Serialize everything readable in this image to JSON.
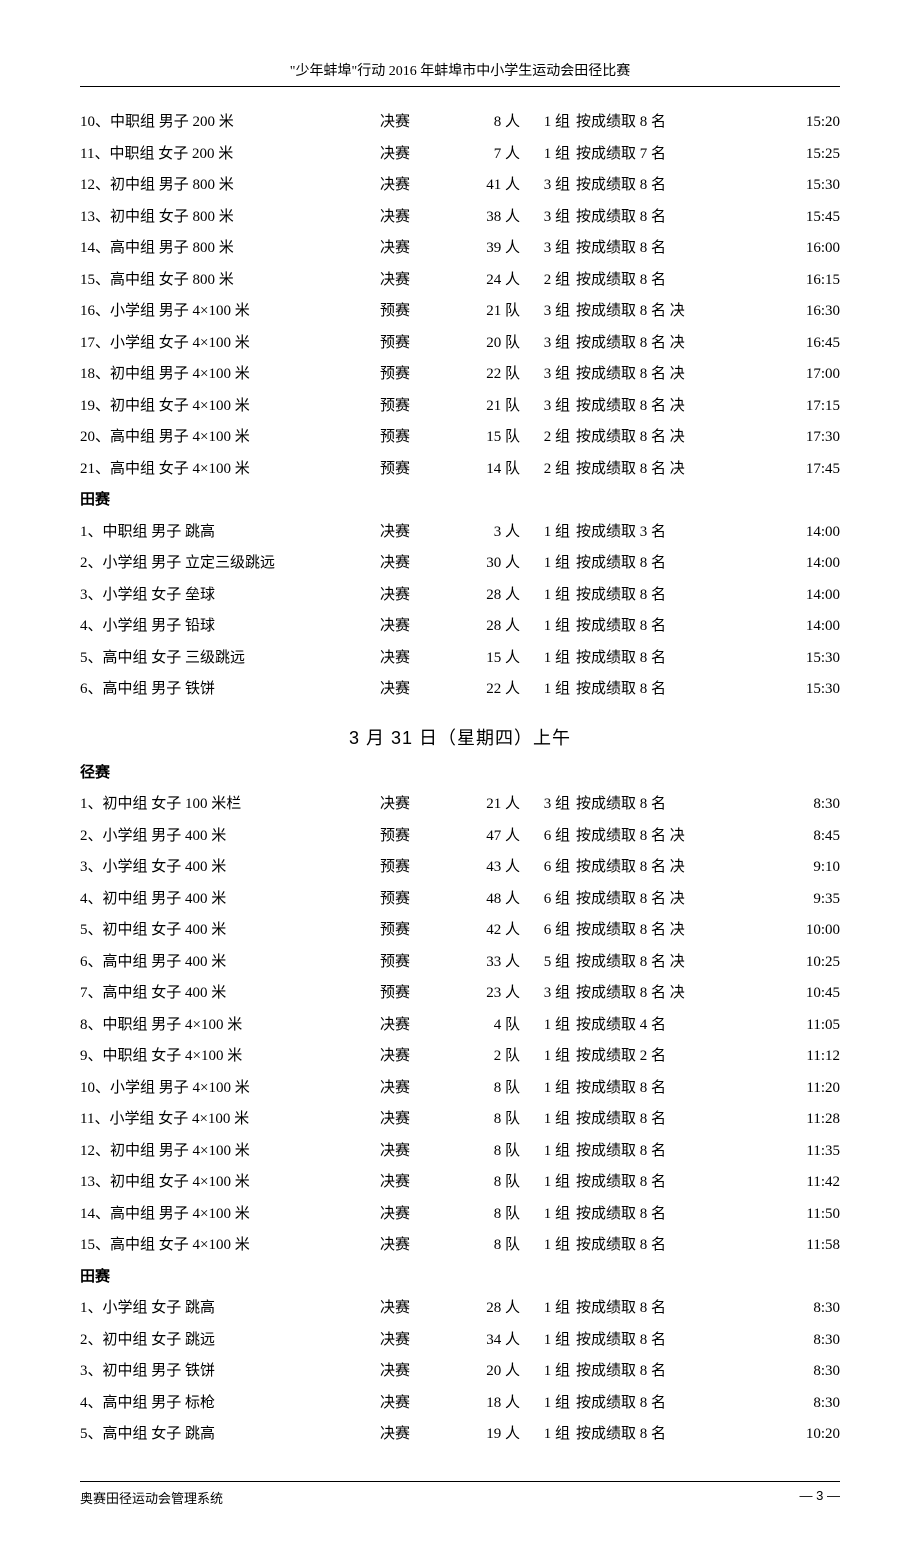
{
  "header": "\"少年蚌埠\"行动 2016 年蚌埠市中小学生运动会田径比赛",
  "sections": [
    {
      "type": "rows",
      "rows": [
        {
          "no": "10、",
          "event": "中职组 男子 200 米",
          "stage": "决赛",
          "count": "8 人",
          "groups": "1 组",
          "rule": "按成绩取 8 名",
          "time": "15:20"
        },
        {
          "no": "11、",
          "event": "中职组 女子 200 米",
          "stage": "决赛",
          "count": "7 人",
          "groups": "1 组",
          "rule": "按成绩取 7 名",
          "time": "15:25"
        },
        {
          "no": "12、",
          "event": "初中组 男子 800 米",
          "stage": "决赛",
          "count": "41 人",
          "groups": "3 组",
          "rule": "按成绩取 8 名",
          "time": "15:30"
        },
        {
          "no": "13、",
          "event": "初中组 女子 800 米",
          "stage": "决赛",
          "count": "38 人",
          "groups": "3 组",
          "rule": "按成绩取 8 名",
          "time": "15:45"
        },
        {
          "no": "14、",
          "event": "高中组 男子 800 米",
          "stage": "决赛",
          "count": "39 人",
          "groups": "3 组",
          "rule": "按成绩取 8 名",
          "time": "16:00"
        },
        {
          "no": "15、",
          "event": "高中组 女子 800 米",
          "stage": "决赛",
          "count": "24 人",
          "groups": "2 组",
          "rule": "按成绩取 8 名",
          "time": "16:15"
        },
        {
          "no": "16、",
          "event": "小学组 男子 4×100 米",
          "stage": "预赛",
          "count": "21 队",
          "groups": "3 组",
          "rule": "按成绩取 8 名 决",
          "time": "16:30"
        },
        {
          "no": "17、",
          "event": "小学组 女子 4×100 米",
          "stage": "预赛",
          "count": "20 队",
          "groups": "3 组",
          "rule": "按成绩取 8 名 决",
          "time": "16:45"
        },
        {
          "no": "18、",
          "event": "初中组 男子 4×100 米",
          "stage": "预赛",
          "count": "22 队",
          "groups": "3 组",
          "rule": "按成绩取 8 名 决",
          "time": "17:00"
        },
        {
          "no": "19、",
          "event": "初中组 女子 4×100 米",
          "stage": "预赛",
          "count": "21 队",
          "groups": "3 组",
          "rule": "按成绩取 8 名 决",
          "time": "17:15"
        },
        {
          "no": "20、",
          "event": "高中组 男子 4×100 米",
          "stage": "预赛",
          "count": "15 队",
          "groups": "2 组",
          "rule": "按成绩取 8 名 决",
          "time": "17:30"
        },
        {
          "no": "21、",
          "event": "高中组 女子 4×100 米",
          "stage": "预赛",
          "count": "14 队",
          "groups": "2 组",
          "rule": "按成绩取 8 名 决",
          "time": "17:45"
        }
      ]
    },
    {
      "type": "header",
      "text": "田赛"
    },
    {
      "type": "rows",
      "rows": [
        {
          "no": "1、",
          "event": "中职组 男子 跳高",
          "stage": "决赛",
          "count": "3 人",
          "groups": "1 组",
          "rule": "按成绩取 3 名",
          "time": "14:00"
        },
        {
          "no": "2、",
          "event": "小学组 男子 立定三级跳远",
          "stage": "决赛",
          "count": "30 人",
          "groups": "1 组",
          "rule": "按成绩取 8 名",
          "time": "14:00"
        },
        {
          "no": "3、",
          "event": "小学组 女子 垒球",
          "stage": "决赛",
          "count": "28 人",
          "groups": "1 组",
          "rule": "按成绩取 8 名",
          "time": "14:00"
        },
        {
          "no": "4、",
          "event": "小学组 男子 铅球",
          "stage": "决赛",
          "count": "28 人",
          "groups": "1 组",
          "rule": "按成绩取 8 名",
          "time": "14:00"
        },
        {
          "no": "5、",
          "event": "高中组 女子 三级跳远",
          "stage": "决赛",
          "count": "15 人",
          "groups": "1 组",
          "rule": "按成绩取 8 名",
          "time": "15:30"
        },
        {
          "no": "6、",
          "event": "高中组 男子 铁饼",
          "stage": "决赛",
          "count": "22 人",
          "groups": "1 组",
          "rule": "按成绩取 8 名",
          "time": "15:30"
        }
      ]
    },
    {
      "type": "date",
      "text": "3 月 31 日（星期四）上午"
    },
    {
      "type": "header",
      "text": "径赛"
    },
    {
      "type": "rows",
      "rows": [
        {
          "no": "1、",
          "event": "初中组 女子 100 米栏",
          "stage": "决赛",
          "count": "21 人",
          "groups": "3 组",
          "rule": "按成绩取 8 名",
          "time": "8:30"
        },
        {
          "no": "2、",
          "event": "小学组 男子 400 米",
          "stage": "预赛",
          "count": "47 人",
          "groups": "6 组",
          "rule": "按成绩取 8 名 决",
          "time": "8:45"
        },
        {
          "no": "3、",
          "event": "小学组 女子 400 米",
          "stage": "预赛",
          "count": "43 人",
          "groups": "6 组",
          "rule": "按成绩取 8 名 决",
          "time": "9:10"
        },
        {
          "no": "4、",
          "event": "初中组 男子 400 米",
          "stage": "预赛",
          "count": "48 人",
          "groups": "6 组",
          "rule": "按成绩取 8 名 决",
          "time": "9:35"
        },
        {
          "no": "5、",
          "event": "初中组 女子 400 米",
          "stage": "预赛",
          "count": "42 人",
          "groups": "6 组",
          "rule": "按成绩取 8 名 决",
          "time": "10:00"
        },
        {
          "no": "6、",
          "event": "高中组 男子 400 米",
          "stage": "预赛",
          "count": "33 人",
          "groups": "5 组",
          "rule": "按成绩取 8 名 决",
          "time": "10:25"
        },
        {
          "no": "7、",
          "event": "高中组 女子 400 米",
          "stage": "预赛",
          "count": "23 人",
          "groups": "3 组",
          "rule": "按成绩取 8 名 决",
          "time": "10:45"
        },
        {
          "no": "8、",
          "event": "中职组 男子 4×100 米",
          "stage": "决赛",
          "count": "4 队",
          "groups": "1 组",
          "rule": "按成绩取 4 名",
          "time": "11:05"
        },
        {
          "no": "9、",
          "event": "中职组 女子 4×100 米",
          "stage": "决赛",
          "count": "2 队",
          "groups": "1 组",
          "rule": "按成绩取 2 名",
          "time": "11:12"
        },
        {
          "no": "10、",
          "event": "小学组 男子 4×100 米",
          "stage": "决赛",
          "count": "8 队",
          "groups": "1 组",
          "rule": "按成绩取 8 名",
          "time": "11:20"
        },
        {
          "no": "11、",
          "event": "小学组 女子 4×100 米",
          "stage": "决赛",
          "count": "8 队",
          "groups": "1 组",
          "rule": "按成绩取 8 名",
          "time": "11:28"
        },
        {
          "no": "12、",
          "event": "初中组 男子 4×100 米",
          "stage": "决赛",
          "count": "8 队",
          "groups": "1 组",
          "rule": "按成绩取 8 名",
          "time": "11:35"
        },
        {
          "no": "13、",
          "event": "初中组 女子 4×100 米",
          "stage": "决赛",
          "count": "8 队",
          "groups": "1 组",
          "rule": "按成绩取 8 名",
          "time": "11:42"
        },
        {
          "no": "14、",
          "event": "高中组 男子 4×100 米",
          "stage": "决赛",
          "count": "8 队",
          "groups": "1 组",
          "rule": "按成绩取 8 名",
          "time": "11:50"
        },
        {
          "no": "15、",
          "event": "高中组 女子 4×100 米",
          "stage": "决赛",
          "count": "8 队",
          "groups": "1 组",
          "rule": "按成绩取 8 名",
          "time": "11:58"
        }
      ]
    },
    {
      "type": "header",
      "text": "田赛"
    },
    {
      "type": "rows",
      "rows": [
        {
          "no": "1、",
          "event": "小学组 女子 跳高",
          "stage": "决赛",
          "count": "28 人",
          "groups": "1 组",
          "rule": "按成绩取 8 名",
          "time": "8:30"
        },
        {
          "no": "2、",
          "event": "初中组 女子 跳远",
          "stage": "决赛",
          "count": "34 人",
          "groups": "1 组",
          "rule": "按成绩取 8 名",
          "time": "8:30"
        },
        {
          "no": "3、",
          "event": "初中组 男子 铁饼",
          "stage": "决赛",
          "count": "20 人",
          "groups": "1 组",
          "rule": "按成绩取 8 名",
          "time": "8:30"
        },
        {
          "no": "4、",
          "event": "高中组 男子 标枪",
          "stage": "决赛",
          "count": "18 人",
          "groups": "1 组",
          "rule": "按成绩取 8 名",
          "time": "8:30"
        },
        {
          "no": "5、",
          "event": "高中组 女子 跳高",
          "stage": "决赛",
          "count": "19 人",
          "groups": "1 组",
          "rule": "按成绩取 8 名",
          "time": "10:20"
        }
      ]
    }
  ],
  "footer": {
    "left": "奥赛田径运动会管理系统",
    "right": "— 3 —"
  }
}
